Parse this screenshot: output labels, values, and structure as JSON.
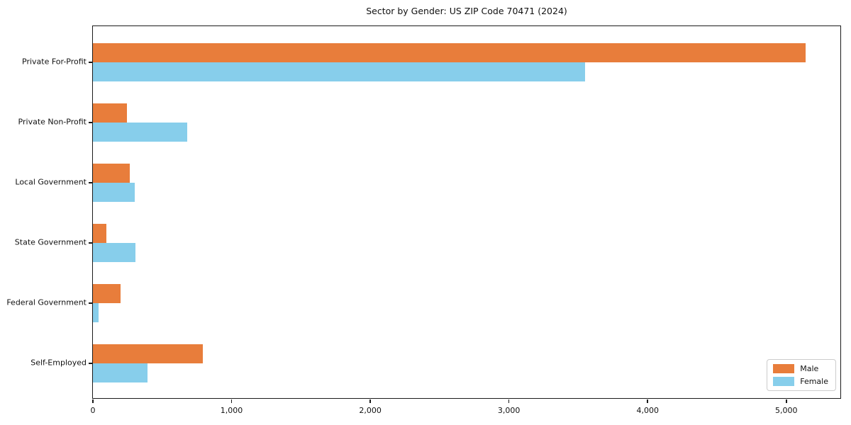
{
  "title": "Sector by Gender: US ZIP Code 70471 (2024)",
  "colors": {
    "male": "#e87d3b",
    "female": "#87ceeb",
    "axis": "#1a1a1a",
    "legend_border": "#cccccc",
    "background": "#ffffff"
  },
  "legend": {
    "position": "lower right",
    "items": [
      {
        "label": "Male",
        "color": "#e87d3b"
      },
      {
        "label": "Female",
        "color": "#87ceeb"
      }
    ]
  },
  "x_axis": {
    "tick_values": [
      0,
      1000,
      2000,
      3000,
      4000,
      5000
    ],
    "tick_labels": [
      "0",
      "1,000",
      "2,000",
      "3,000",
      "4,000",
      "5,000"
    ]
  },
  "chart_data": {
    "type": "bar",
    "orientation": "horizontal",
    "title": "Sector by Gender: US ZIP Code 70471 (2024)",
    "categories": [
      "Private For-Profit",
      "Private Non-Profit",
      "Local Government",
      "State Government",
      "Federal Government",
      "Self-Employed"
    ],
    "series": [
      {
        "name": "Male",
        "color": "#e87d3b",
        "values": [
          5140,
          245,
          265,
          95,
          200,
          795
        ]
      },
      {
        "name": "Female",
        "color": "#87ceeb",
        "values": [
          3550,
          680,
          300,
          305,
          40,
          395
        ]
      }
    ],
    "xlabel": "",
    "ylabel": "",
    "xlim": [
      0,
      5400
    ],
    "grid": false,
    "legend_position": "lower right"
  }
}
